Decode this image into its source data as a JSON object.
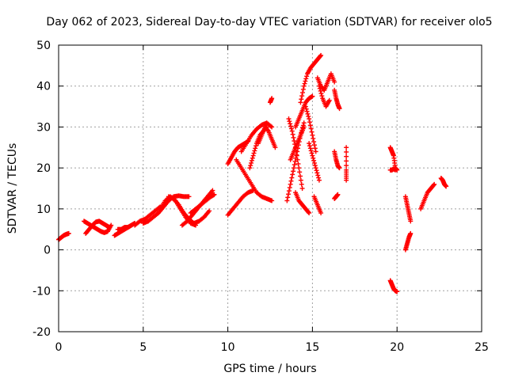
{
  "chart_data": {
    "type": "scatter",
    "title": "Day 062 of 2023, Sidereal Day-to-day VTEC variation (SDTVAR) for receiver olo5",
    "xlabel": "GPS time / hours",
    "ylabel": "SDTVAR / TECUs",
    "xlim": [
      0,
      25
    ],
    "ylim": [
      -20,
      50
    ],
    "xticks": [
      "0",
      "5",
      "10",
      "15",
      "20",
      "25"
    ],
    "yticks": [
      "-20",
      "-10",
      "0",
      "10",
      "20",
      "30",
      "40",
      "50"
    ],
    "grid": true,
    "marker": "+",
    "color": "#ff0000",
    "series": [
      {
        "name": "ramp",
        "x": [
          0.0,
          0.15,
          0.3,
          0.45,
          0.6
        ],
        "y": [
          2.5,
          3.0,
          3.5,
          3.8,
          4.0
        ]
      },
      {
        "name": "s1",
        "x": [
          1.5,
          1.7,
          1.9,
          2.1,
          2.3,
          2.5,
          2.7,
          2.9,
          3.1
        ],
        "y": [
          7.0,
          6.5,
          6.0,
          5.5,
          5.0,
          4.5,
          4.2,
          4.5,
          6.0
        ]
      },
      {
        "name": "s2",
        "x": [
          1.6,
          1.8,
          2.0,
          2.2,
          2.4,
          2.6,
          2.8,
          3.0
        ],
        "y": [
          4.0,
          5.0,
          6.0,
          6.8,
          7.0,
          6.5,
          6.0,
          5.5
        ]
      },
      {
        "name": "s3",
        "x": [
          3.3,
          3.5,
          3.7,
          3.9,
          4.1,
          4.3
        ],
        "y": [
          3.5,
          4.0,
          4.5,
          5.0,
          5.5,
          6.0
        ]
      },
      {
        "name": "s4",
        "x": [
          3.5,
          3.7,
          3.9,
          4.1,
          4.3,
          4.5
        ],
        "y": [
          5.0,
          5.0,
          5.5,
          5.5,
          6.0,
          6.5
        ]
      },
      {
        "name": "s5",
        "x": [
          4.5,
          4.8,
          5.1,
          5.4,
          5.7,
          6.0
        ],
        "y": [
          6.0,
          7.0,
          7.5,
          8.5,
          9.5,
          10.5
        ]
      },
      {
        "name": "s6",
        "x": [
          5.0,
          5.3,
          5.6,
          5.9,
          6.2,
          6.5,
          6.8,
          7.1,
          7.4,
          7.7
        ],
        "y": [
          6.5,
          7.0,
          8.0,
          9.0,
          10.5,
          12.0,
          13.0,
          13.2,
          13.0,
          13.0
        ]
      },
      {
        "name": "s7",
        "x": [
          6.0,
          6.3,
          6.6,
          6.9,
          7.2,
          7.5,
          7.8,
          8.1
        ],
        "y": [
          10.0,
          12.0,
          13.0,
          12.0,
          10.0,
          8.0,
          6.5,
          6.0
        ]
      },
      {
        "name": "s8",
        "x": [
          6.5,
          6.8,
          7.1,
          7.4,
          7.7,
          8.0,
          8.3,
          8.6,
          8.9
        ],
        "y": [
          13.0,
          12.5,
          11.0,
          9.0,
          7.5,
          6.5,
          7.0,
          8.0,
          9.5
        ]
      },
      {
        "name": "s9",
        "x": [
          7.3,
          7.6,
          7.9,
          8.2,
          8.5,
          8.8,
          9.1
        ],
        "y": [
          6.0,
          7.0,
          8.5,
          10.0,
          11.5,
          13.0,
          14.5
        ]
      },
      {
        "name": "s10",
        "x": [
          7.8,
          8.1,
          8.4,
          8.7,
          9.0,
          9.2
        ],
        "y": [
          9.0,
          10.0,
          11.0,
          12.0,
          13.0,
          13.5
        ]
      },
      {
        "name": "s11",
        "x": [
          10.0,
          10.2,
          10.4,
          10.6,
          10.8,
          11.0,
          11.2
        ],
        "y": [
          21.0,
          22.5,
          24.0,
          25.0,
          25.5,
          26.0,
          26.5
        ]
      },
      {
        "name": "s12",
        "x": [
          10.0,
          10.3,
          10.6,
          10.9,
          11.2,
          11.5
        ],
        "y": [
          8.5,
          10.0,
          11.5,
          13.0,
          14.0,
          14.5
        ]
      },
      {
        "name": "s13",
        "x": [
          10.5,
          10.8,
          11.1,
          11.4,
          11.7,
          12.0,
          12.3,
          12.6
        ],
        "y": [
          22.0,
          20.0,
          18.0,
          16.0,
          14.0,
          13.0,
          12.5,
          12.0
        ]
      },
      {
        "name": "s14",
        "x": [
          10.8,
          11.1,
          11.4,
          11.7,
          12.0,
          12.3,
          12.6
        ],
        "y": [
          24.0,
          26.0,
          28.0,
          29.5,
          30.5,
          31.0,
          30.0
        ]
      },
      {
        "name": "s15",
        "x": [
          11.3,
          11.5,
          11.7,
          11.9,
          12.1,
          12.3
        ],
        "y": [
          20.0,
          23.0,
          26.0,
          28.0,
          29.0,
          30.0
        ]
      },
      {
        "name": "s16",
        "x": [
          11.8,
          12.0,
          12.2,
          12.4,
          12.6,
          12.8
        ],
        "y": [
          26.0,
          28.0,
          30.0,
          29.0,
          27.0,
          25.0
        ]
      },
      {
        "name": "s17",
        "x": [
          12.5,
          12.6
        ],
        "y": [
          36.0,
          37.0
        ]
      },
      {
        "name": "s18",
        "x": [
          13.5,
          13.7,
          13.9,
          14.1,
          14.3,
          14.5
        ],
        "y": [
          12.0,
          16.0,
          20.0,
          24.0,
          28.0,
          30.0
        ]
      },
      {
        "name": "s19",
        "x": [
          13.6,
          13.8,
          14.0,
          14.2,
          14.4
        ],
        "y": [
          32.0,
          29.0,
          25.0,
          20.0,
          15.0
        ]
      },
      {
        "name": "s20",
        "x": [
          13.7,
          13.9,
          14.1,
          14.3,
          14.5
        ],
        "y": [
          22.0,
          24.0,
          26.0,
          28.0,
          31.0
        ]
      },
      {
        "name": "s21",
        "x": [
          14.0,
          14.2,
          14.4,
          14.6,
          14.8
        ],
        "y": [
          14.0,
          12.0,
          11.0,
          10.0,
          9.0
        ]
      },
      {
        "name": "s22",
        "x": [
          14.0,
          14.2,
          14.4,
          14.6,
          14.8,
          15.0
        ],
        "y": [
          30.0,
          32.0,
          34.0,
          36.0,
          37.0,
          37.5
        ]
      },
      {
        "name": "s23",
        "x": [
          14.3,
          14.5,
          14.7,
          14.9,
          15.1,
          15.3,
          15.5
        ],
        "y": [
          36.0,
          40.0,
          43.0,
          44.5,
          45.5,
          46.5,
          47.5
        ]
      },
      {
        "name": "s24",
        "x": [
          14.6,
          14.8,
          15.0,
          15.2
        ],
        "y": [
          35.0,
          32.0,
          28.0,
          24.0
        ]
      },
      {
        "name": "s25",
        "x": [
          14.8,
          15.0,
          15.2,
          15.4
        ],
        "y": [
          26.0,
          23.0,
          20.0,
          17.0
        ]
      },
      {
        "name": "s26",
        "x": [
          15.1,
          15.3,
          15.5
        ],
        "y": [
          13.0,
          11.0,
          9.0
        ]
      },
      {
        "name": "s27",
        "x": [
          15.3,
          15.5,
          15.7,
          15.9,
          16.1,
          16.3
        ],
        "y": [
          42.0,
          40.0,
          39.0,
          41.0,
          43.0,
          41.0
        ]
      },
      {
        "name": "s28",
        "x": [
          15.4,
          15.6,
          15.8,
          16.0
        ],
        "y": [
          40.0,
          37.0,
          35.0,
          36.5
        ]
      },
      {
        "name": "s29",
        "x": [
          16.3,
          16.4,
          16.5,
          16.6
        ],
        "y": [
          39.0,
          37.0,
          35.5,
          34.5
        ]
      },
      {
        "name": "s30",
        "x": [
          16.3,
          16.4,
          16.5,
          16.6
        ],
        "y": [
          24.0,
          22.0,
          20.5,
          20.0
        ]
      },
      {
        "name": "s31",
        "x": [
          16.3,
          16.4,
          16.5
        ],
        "y": [
          12.5,
          13.0,
          13.5
        ]
      },
      {
        "name": "s32",
        "x": [
          17.0,
          17.0,
          17.0
        ],
        "y": [
          25.0,
          19.5,
          17.0
        ]
      },
      {
        "name": "s33",
        "x": [
          19.6,
          19.7,
          19.8,
          19.9,
          20.0
        ],
        "y": [
          25.0,
          24.0,
          23.0,
          20.0,
          19.5
        ]
      },
      {
        "name": "s34",
        "x": [
          19.6,
          19.7,
          19.8,
          19.9
        ],
        "y": [
          19.5,
          19.5,
          19.8,
          19.5
        ]
      },
      {
        "name": "s35",
        "x": [
          19.6,
          19.7,
          19.8,
          19.9,
          20.0
        ],
        "y": [
          -7.5,
          -8.5,
          -9.5,
          -10.0,
          -10.2
        ]
      },
      {
        "name": "s36",
        "x": [
          20.5,
          20.6,
          20.7,
          20.8
        ],
        "y": [
          13.0,
          11.0,
          9.0,
          7.0
        ]
      },
      {
        "name": "s37",
        "x": [
          20.5,
          20.6,
          20.7,
          20.8
        ],
        "y": [
          0.0,
          1.5,
          3.0,
          4.0
        ]
      },
      {
        "name": "s38",
        "x": [
          21.4,
          21.6,
          21.8,
          22.0,
          22.2
        ],
        "y": [
          10.0,
          12.0,
          14.0,
          15.0,
          16.0
        ]
      },
      {
        "name": "s39",
        "x": [
          22.6,
          22.7,
          22.8,
          22.9
        ],
        "y": [
          17.5,
          17.0,
          16.0,
          15.5
        ]
      }
    ]
  }
}
